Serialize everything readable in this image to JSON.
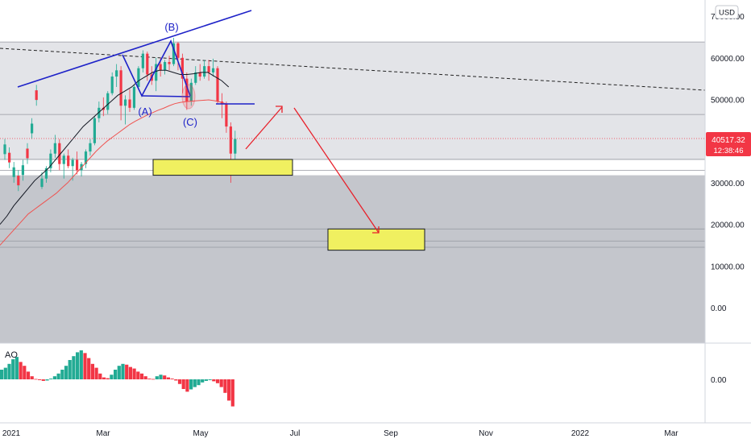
{
  "chart_data": [
    {
      "type": "candlestick",
      "currency_label": "USD",
      "y_ticks": [
        "70000.00",
        "60000.00",
        "50000.00",
        "40000.00",
        "30000.00",
        "20000.00",
        "10000.00",
        "0.00"
      ],
      "x_ticks": [
        "2021",
        "Mar",
        "May",
        "Jul",
        "Sep",
        "Nov",
        "2022",
        "Mar"
      ],
      "ylim": [
        -7600,
        73000
      ],
      "last_price": {
        "value": "40517.32",
        "countdown": "12:38:46",
        "color": "#f23645"
      },
      "colors": {
        "up": "#22ab94",
        "down": "#f23645",
        "ma_long": "#ef5350",
        "ma_short": "#131722",
        "wave": "#1e22c8",
        "projection": "#e8202a",
        "box_fill": "#f0f060",
        "zone_fill": "#c4c6cc"
      },
      "wave_labels": [
        "(A)",
        "(B)",
        "(C)"
      ],
      "horizontal_levels": [
        63800,
        46400,
        35600,
        33000,
        18900,
        16000,
        14500
      ],
      "target_zone_1": [
        31800,
        35600
      ],
      "target_zone_2": [
        13800,
        18900
      ],
      "candles": [
        [
          29000,
          32500,
          28500,
          31000
        ],
        [
          31000,
          34000,
          30000,
          33500
        ],
        [
          33500,
          38000,
          32500,
          37000
        ],
        [
          37000,
          41500,
          36000,
          39500
        ],
        [
          39500,
          40500,
          33000,
          34500
        ],
        [
          34500,
          37000,
          31000,
          36500
        ],
        [
          36500,
          38000,
          33500,
          34000
        ],
        [
          34000,
          36000,
          30500,
          35500
        ],
        [
          35500,
          37500,
          32000,
          33000
        ],
        [
          33000,
          35000,
          31500,
          34500
        ],
        [
          34500,
          38000,
          33500,
          37500
        ],
        [
          37500,
          40500,
          36500,
          39500
        ],
        [
          39500,
          46000,
          39000,
          45500
        ],
        [
          45500,
          49500,
          44500,
          48000
        ],
        [
          48000,
          50500,
          46000,
          47500
        ],
        [
          47500,
          52000,
          46500,
          51500
        ],
        [
          51500,
          56500,
          51000,
          55500
        ],
        [
          55500,
          58500,
          53000,
          57000
        ],
        [
          57000,
          58000,
          45000,
          48500
        ],
        [
          48500,
          51000,
          44000,
          50000
        ],
        [
          50000,
          52500,
          47000,
          48000
        ],
        [
          48000,
          53500,
          47500,
          53000
        ],
        [
          53000,
          58000,
          52500,
          57500
        ],
        [
          57500,
          61800,
          56500,
          61000
        ],
        [
          61000,
          61500,
          54500,
          56000
        ],
        [
          56000,
          58000,
          53500,
          54500
        ],
        [
          54500,
          60000,
          52000,
          58500
        ],
        [
          58500,
          60000,
          55500,
          57000
        ],
        [
          57000,
          59500,
          56000,
          59000
        ],
        [
          59000,
          60500,
          57000,
          58500
        ],
        [
          58500,
          64800,
          58000,
          63500
        ],
        [
          63500,
          63800,
          57000,
          60000
        ],
        [
          60000,
          61000,
          51500,
          55000
        ],
        [
          55000,
          56500,
          47500,
          49500
        ],
        [
          49500,
          55000,
          48500,
          54000
        ],
        [
          54000,
          58000,
          53500,
          56500
        ],
        [
          56500,
          58500,
          54500,
          55500
        ],
        [
          55500,
          59500,
          55000,
          58000
        ],
        [
          58000,
          59500,
          54500,
          56500
        ],
        [
          56500,
          59800,
          55500,
          57500
        ],
        [
          57500,
          58000,
          49000,
          49500
        ],
        [
          49500,
          51500,
          45500,
          49000
        ],
        [
          49000,
          49500,
          42000,
          43500
        ],
        [
          43500,
          44500,
          30000,
          37000
        ],
        [
          37000,
          42500,
          35500,
          40517
        ]
      ],
      "ma_long": [
        15000,
        16500,
        18000,
        19500,
        21000,
        22500,
        23500,
        24500,
        25500,
        26500,
        27500,
        28800,
        30000,
        31500,
        33000,
        34500,
        36000,
        37500,
        38800,
        40000,
        41000,
        42000,
        43000,
        44000,
        44800,
        45500,
        46200,
        46800,
        47400,
        47900,
        48500,
        49000,
        49300,
        49500,
        49600,
        49700,
        49800,
        49900,
        49700,
        49400,
        49000
      ],
      "ma_short": [
        20000,
        22000,
        24500,
        26500,
        28500,
        30500,
        32000,
        33500,
        35500,
        37500,
        39500,
        41500,
        43500,
        45000,
        46500,
        48000,
        49500,
        51000,
        52000,
        53000,
        54500,
        55500,
        56500,
        57000,
        57000,
        56500,
        56000,
        56000,
        56200,
        56500,
        56500,
        55500,
        54500,
        53000
      ],
      "price_levels": [
        38000,
        36000,
        32500,
        30500,
        33000,
        37000,
        43000,
        51000
      ]
    },
    {
      "type": "histogram",
      "title": "AO",
      "y_ticks": [
        "0.00"
      ],
      "values": [
        2500,
        3000,
        4000,
        5200,
        5800,
        4500,
        3500,
        2000,
        800,
        100,
        -200,
        -400,
        -300,
        200,
        800,
        1500,
        2500,
        3500,
        5000,
        6000,
        7000,
        7500,
        6800,
        5500,
        4000,
        3000,
        1500,
        500,
        300,
        1200,
        2500,
        3500,
        4000,
        3800,
        3200,
        2800,
        2000,
        1500,
        800,
        200,
        100,
        800,
        1200,
        1000,
        500,
        200,
        -300,
        -1200,
        -2500,
        -3200,
        -2600,
        -2000,
        -1500,
        -800,
        -400,
        -200,
        -500,
        -1000,
        -2000,
        -3500,
        -5500,
        -7000
      ]
    }
  ]
}
